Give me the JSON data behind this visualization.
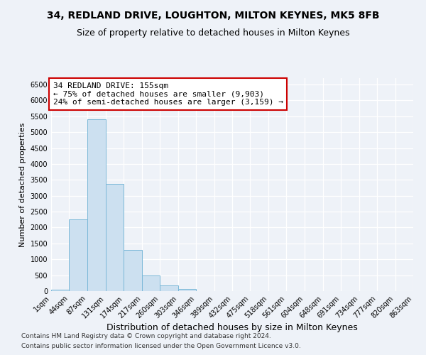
{
  "title1": "34, REDLAND DRIVE, LOUGHTON, MILTON KEYNES, MK5 8FB",
  "title2": "Size of property relative to detached houses in Milton Keynes",
  "xlabel": "Distribution of detached houses by size in Milton Keynes",
  "ylabel": "Number of detached properties",
  "footnote1": "Contains HM Land Registry data © Crown copyright and database right 2024.",
  "footnote2": "Contains public sector information licensed under the Open Government Licence v3.0.",
  "annotation_title": "34 REDLAND DRIVE: 155sqm",
  "annotation_line2": "← 75% of detached houses are smaller (9,903)",
  "annotation_line3": "24% of semi-detached houses are larger (3,159) →",
  "bar_color": "#cce0f0",
  "bar_edge_color": "#7ab8d8",
  "background_color": "#eef2f8",
  "grid_color": "#ffffff",
  "annotation_box_color": "#ffffff",
  "annotation_box_edge": "#cc0000",
  "bins": [
    1,
    44,
    87,
    131,
    174,
    217,
    260,
    303,
    346,
    389,
    432,
    475,
    518,
    561,
    604,
    648,
    691,
    734,
    777,
    820,
    863
  ],
  "bin_labels": [
    "1sqm",
    "44sqm",
    "87sqm",
    "131sqm",
    "174sqm",
    "217sqm",
    "260sqm",
    "303sqm",
    "346sqm",
    "389sqm",
    "432sqm",
    "475sqm",
    "518sqm",
    "561sqm",
    "604sqm",
    "648sqm",
    "691sqm",
    "734sqm",
    "777sqm",
    "820sqm",
    "863sqm"
  ],
  "values": [
    50,
    2250,
    5400,
    3380,
    1300,
    490,
    185,
    70,
    0,
    0,
    0,
    0,
    0,
    0,
    0,
    0,
    0,
    0,
    0,
    0
  ],
  "ylim": [
    0,
    6700
  ],
  "yticks": [
    0,
    500,
    1000,
    1500,
    2000,
    2500,
    3000,
    3500,
    4000,
    4500,
    5000,
    5500,
    6000,
    6500
  ],
  "title1_fontsize": 10,
  "title2_fontsize": 9,
  "xlabel_fontsize": 9,
  "ylabel_fontsize": 8,
  "annotation_fontsize": 8,
  "tick_fontsize": 7,
  "footnote_fontsize": 6.5
}
